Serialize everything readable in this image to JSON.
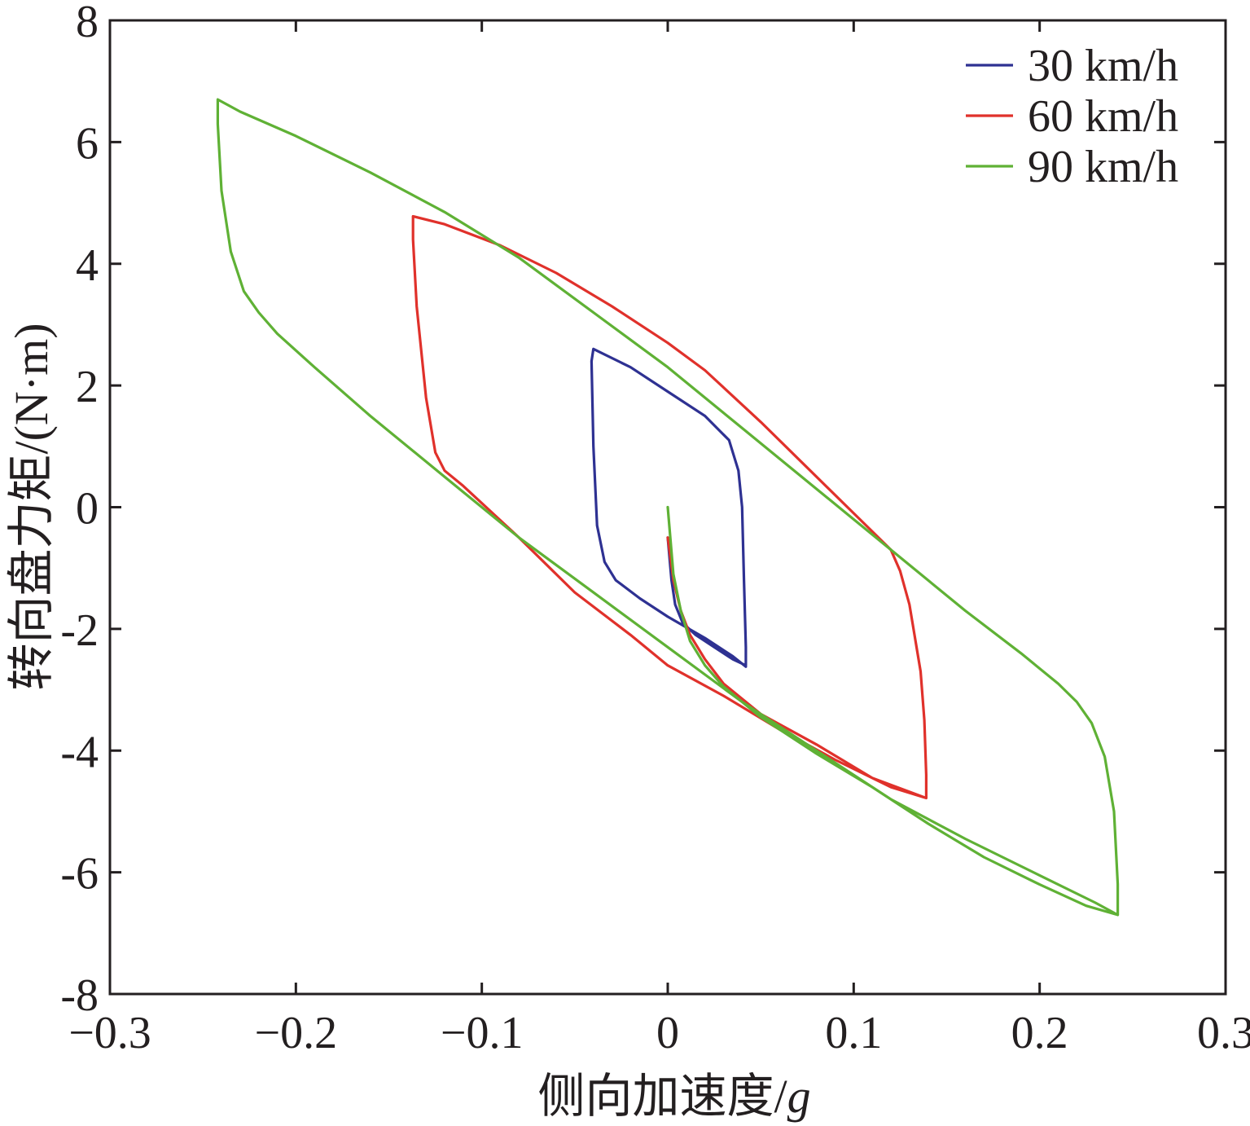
{
  "chart_data": {
    "type": "line",
    "title": "",
    "xlabel": "侧向加速度/",
    "xlabel_italic": "g",
    "ylabel": "转向盘力矩/(N·m)",
    "xlim": [
      -0.3,
      0.3
    ],
    "ylim": [
      -8,
      8
    ],
    "xticks": [
      -0.3,
      -0.2,
      -0.1,
      0,
      0.1,
      0.2,
      0.3
    ],
    "xtick_labels": [
      "−0.3",
      "−0.2",
      "−0.1",
      "0",
      "0.1",
      "0.2",
      "0.3"
    ],
    "yticks": [
      8,
      6,
      4,
      2,
      0,
      -2,
      -4,
      -6,
      -8
    ],
    "ytick_labels": [
      "8",
      "6",
      "4",
      "2",
      "0",
      "-2",
      "-4",
      "-6",
      "-8"
    ],
    "grid": false,
    "legend_position": "top-right",
    "series": [
      {
        "name": "30 km/h",
        "color": "#2e3192",
        "x": [
          0.0,
          0.002,
          0.004,
          0.008,
          0.015,
          0.025,
          0.035,
          0.042,
          0.042,
          0.041,
          0.04,
          0.038,
          0.033,
          0.02,
          0.0,
          -0.02,
          -0.04,
          -0.041,
          -0.04,
          -0.038,
          -0.034,
          -0.028,
          -0.015,
          0.0,
          0.02,
          0.035,
          0.042
        ],
        "y": [
          -0.5,
          -1.2,
          -1.6,
          -1.9,
          -2.1,
          -2.3,
          -2.5,
          -2.6,
          -2.3,
          -1.2,
          0.0,
          0.6,
          1.1,
          1.5,
          1.9,
          2.3,
          2.6,
          2.4,
          1.0,
          -0.3,
          -0.9,
          -1.2,
          -1.5,
          -1.8,
          -2.15,
          -2.45,
          -2.62
        ]
      },
      {
        "name": "60 km/h",
        "color": "#e0312b",
        "x": [
          0.0,
          0.003,
          0.007,
          0.012,
          0.02,
          0.03,
          0.05,
          0.08,
          0.11,
          0.139,
          0.139,
          0.138,
          0.136,
          0.13,
          0.125,
          0.12,
          0.11,
          0.08,
          0.05,
          0.02,
          0.0,
          -0.03,
          -0.06,
          -0.09,
          -0.12,
          -0.137,
          -0.137,
          -0.135,
          -0.13,
          -0.125,
          -0.12,
          -0.11,
          -0.08,
          -0.05,
          -0.02,
          0.0,
          0.03,
          0.06,
          0.09,
          0.12,
          0.139
        ],
        "y": [
          -0.5,
          -1.2,
          -1.7,
          -2.1,
          -2.5,
          -2.9,
          -3.4,
          -3.9,
          -4.45,
          -4.78,
          -4.4,
          -3.5,
          -2.7,
          -1.6,
          -1.05,
          -0.7,
          -0.4,
          0.5,
          1.4,
          2.25,
          2.7,
          3.3,
          3.85,
          4.3,
          4.65,
          4.78,
          4.4,
          3.3,
          1.8,
          0.9,
          0.6,
          0.35,
          -0.5,
          -1.4,
          -2.1,
          -2.6,
          -3.1,
          -3.65,
          -4.15,
          -4.6,
          -4.78
        ]
      },
      {
        "name": "90 km/h",
        "color": "#5fb135",
        "x": [
          0.0,
          0.003,
          0.007,
          0.012,
          0.02,
          0.03,
          0.05,
          0.08,
          0.11,
          0.14,
          0.17,
          0.2,
          0.225,
          0.242,
          0.242,
          0.24,
          0.235,
          0.228,
          0.22,
          0.21,
          0.19,
          0.16,
          0.12,
          0.08,
          0.04,
          0.0,
          -0.04,
          -0.08,
          -0.12,
          -0.16,
          -0.2,
          -0.23,
          -0.242,
          -0.242,
          -0.24,
          -0.235,
          -0.228,
          -0.22,
          -0.21,
          -0.19,
          -0.16,
          -0.12,
          -0.08,
          -0.04,
          0.0,
          0.04,
          0.08,
          0.12,
          0.16,
          0.2,
          0.23,
          0.242
        ],
        "y": [
          0.0,
          -1.1,
          -1.7,
          -2.2,
          -2.6,
          -2.95,
          -3.45,
          -4.05,
          -4.6,
          -5.2,
          -5.75,
          -6.2,
          -6.55,
          -6.7,
          -6.2,
          -5.0,
          -4.1,
          -3.55,
          -3.2,
          -2.9,
          -2.4,
          -1.7,
          -0.7,
          0.3,
          1.3,
          2.3,
          3.2,
          4.1,
          4.85,
          5.5,
          6.1,
          6.5,
          6.7,
          6.3,
          5.2,
          4.2,
          3.55,
          3.2,
          2.85,
          2.3,
          1.5,
          0.5,
          -0.5,
          -1.4,
          -2.3,
          -3.2,
          -4.0,
          -4.8,
          -5.45,
          -6.05,
          -6.5,
          -6.7
        ]
      }
    ]
  }
}
